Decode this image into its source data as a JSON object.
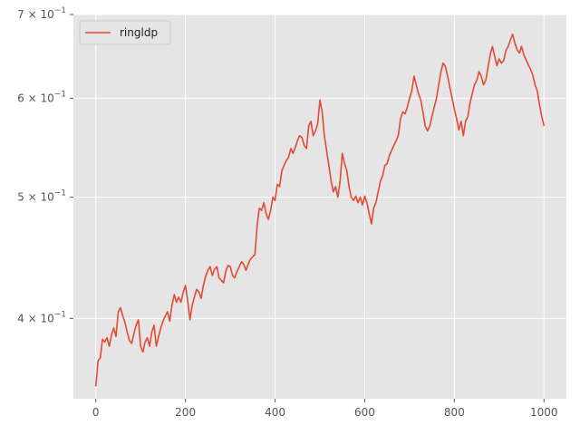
{
  "chart_data": {
    "type": "line",
    "title": "",
    "xlabel": "",
    "ylabel": "",
    "y_scale": "log",
    "xlim": [
      -50,
      1050
    ],
    "ylim": [
      0.345,
      0.7
    ],
    "grid": true,
    "legend_position": "top-left",
    "x_ticks": [
      0,
      200,
      400,
      600,
      800,
      1000
    ],
    "x_tick_labels": [
      "0",
      "200",
      "400",
      "600",
      "800",
      "1000"
    ],
    "y_ticks": [
      0.4,
      0.5,
      0.6,
      0.7
    ],
    "y_tick_labels": [
      {
        "mantissa": "4",
        "exp": "−1"
      },
      {
        "mantissa": "5",
        "exp": "−1"
      },
      {
        "mantissa": "6",
        "exp": "−1"
      },
      {
        "mantissa": "7",
        "exp": "−1"
      }
    ],
    "colors": {
      "line": "#E24A33",
      "background": "#E5E5E5",
      "grid": "#FFFFFF"
    },
    "series": [
      {
        "name": "ringldp",
        "x": [
          0,
          5,
          10,
          15,
          20,
          25,
          30,
          35,
          40,
          45,
          50,
          55,
          60,
          65,
          70,
          75,
          80,
          85,
          90,
          95,
          100,
          105,
          110,
          115,
          120,
          125,
          130,
          135,
          140,
          145,
          150,
          155,
          160,
          165,
          170,
          175,
          180,
          185,
          190,
          195,
          200,
          205,
          210,
          215,
          220,
          225,
          230,
          235,
          240,
          245,
          250,
          255,
          260,
          265,
          270,
          275,
          280,
          285,
          290,
          295,
          300,
          305,
          310,
          315,
          320,
          325,
          330,
          335,
          340,
          345,
          350,
          355,
          360,
          365,
          370,
          375,
          380,
          385,
          390,
          395,
          400,
          405,
          410,
          415,
          420,
          425,
          430,
          435,
          440,
          445,
          450,
          455,
          460,
          465,
          470,
          475,
          480,
          485,
          490,
          495,
          500,
          505,
          510,
          515,
          520,
          525,
          530,
          535,
          540,
          545,
          550,
          555,
          560,
          565,
          570,
          575,
          580,
          585,
          590,
          595,
          600,
          605,
          610,
          615,
          620,
          625,
          630,
          635,
          640,
          645,
          650,
          655,
          660,
          665,
          670,
          675,
          680,
          685,
          690,
          695,
          700,
          705,
          710,
          715,
          720,
          725,
          730,
          735,
          740,
          745,
          750,
          755,
          760,
          765,
          770,
          775,
          780,
          785,
          790,
          795,
          800,
          805,
          810,
          815,
          820,
          825,
          830,
          835,
          840,
          845,
          850,
          855,
          860,
          865,
          870,
          875,
          880,
          885,
          890,
          895,
          900,
          905,
          910,
          915,
          920,
          925,
          930,
          935,
          940,
          945,
          950,
          955,
          960,
          965,
          970,
          975,
          980,
          985,
          990,
          995,
          1000
        ],
        "values": [
          0.353,
          0.37,
          0.372,
          0.385,
          0.383,
          0.386,
          0.38,
          0.388,
          0.393,
          0.387,
          0.405,
          0.408,
          0.402,
          0.397,
          0.39,
          0.384,
          0.382,
          0.389,
          0.395,
          0.399,
          0.38,
          0.376,
          0.383,
          0.386,
          0.38,
          0.39,
          0.395,
          0.38,
          0.387,
          0.393,
          0.398,
          0.402,
          0.405,
          0.398,
          0.41,
          0.418,
          0.412,
          0.416,
          0.412,
          0.42,
          0.425,
          0.413,
          0.399,
          0.41,
          0.416,
          0.422,
          0.42,
          0.415,
          0.425,
          0.432,
          0.437,
          0.44,
          0.433,
          0.438,
          0.44,
          0.431,
          0.429,
          0.427,
          0.436,
          0.441,
          0.44,
          0.433,
          0.431,
          0.436,
          0.44,
          0.444,
          0.442,
          0.437,
          0.442,
          0.446,
          0.448,
          0.45,
          0.475,
          0.49,
          0.488,
          0.495,
          0.485,
          0.48,
          0.488,
          0.5,
          0.497,
          0.512,
          0.51,
          0.525,
          0.53,
          0.535,
          0.538,
          0.547,
          0.542,
          0.548,
          0.555,
          0.56,
          0.558,
          0.55,
          0.547,
          0.57,
          0.575,
          0.56,
          0.565,
          0.572,
          0.598,
          0.585,
          0.56,
          0.545,
          0.53,
          0.515,
          0.505,
          0.51,
          0.5,
          0.515,
          0.542,
          0.532,
          0.525,
          0.51,
          0.5,
          0.497,
          0.501,
          0.495,
          0.5,
          0.493,
          0.501,
          0.495,
          0.485,
          0.476,
          0.49,
          0.495,
          0.505,
          0.515,
          0.52,
          0.53,
          0.532,
          0.54,
          0.545,
          0.55,
          0.555,
          0.56,
          0.578,
          0.585,
          0.583,
          0.59,
          0.6,
          0.608,
          0.625,
          0.615,
          0.605,
          0.598,
          0.585,
          0.57,
          0.565,
          0.57,
          0.58,
          0.59,
          0.6,
          0.615,
          0.63,
          0.64,
          0.636,
          0.625,
          0.612,
          0.6,
          0.588,
          0.578,
          0.566,
          0.575,
          0.56,
          0.575,
          0.58,
          0.595,
          0.605,
          0.615,
          0.62,
          0.63,
          0.625,
          0.615,
          0.62,
          0.635,
          0.65,
          0.66,
          0.648,
          0.637,
          0.645,
          0.64,
          0.643,
          0.655,
          0.66,
          0.668,
          0.675,
          0.664,
          0.656,
          0.652,
          0.66,
          0.65,
          0.644,
          0.638,
          0.633,
          0.626,
          0.615,
          0.608,
          0.593,
          0.58,
          0.57
        ]
      }
    ]
  }
}
